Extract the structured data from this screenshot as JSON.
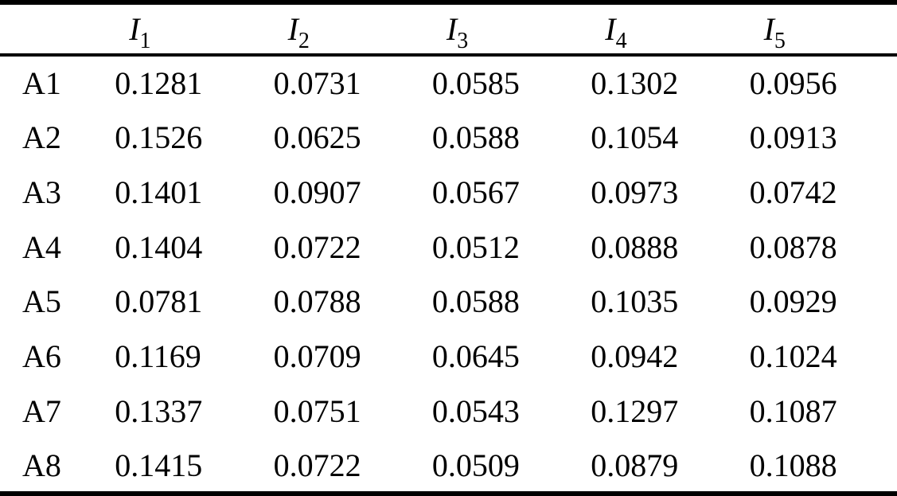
{
  "page": {
    "background_color": "#ffffff",
    "text_color": "#000000"
  },
  "chart_data": {
    "type": "table",
    "corner_header": "",
    "column_headers": [
      {
        "base": "I",
        "sub": "1"
      },
      {
        "base": "I",
        "sub": "2"
      },
      {
        "base": "I",
        "sub": "3"
      },
      {
        "base": "I",
        "sub": "4"
      },
      {
        "base": "I",
        "sub": "5"
      }
    ],
    "row_labels": [
      "A1",
      "A2",
      "A3",
      "A4",
      "A5",
      "A6",
      "A7",
      "A8"
    ],
    "rows": [
      [
        "0.1281",
        "0.0731",
        "0.0585",
        "0.1302",
        "0.0956"
      ],
      [
        "0.1526",
        "0.0625",
        "0.0588",
        "0.1054",
        "0.0913"
      ],
      [
        "0.1401",
        "0.0907",
        "0.0567",
        "0.0973",
        "0.0742"
      ],
      [
        "0.1404",
        "0.0722",
        "0.0512",
        "0.0888",
        "0.0878"
      ],
      [
        "0.0781",
        "0.0788",
        "0.0588",
        "0.1035",
        "0.0929"
      ],
      [
        "0.1169",
        "0.0709",
        "0.0645",
        "0.0942",
        "0.1024"
      ],
      [
        "0.1337",
        "0.0751",
        "0.0543",
        "0.1297",
        "0.1087"
      ],
      [
        "0.1415",
        "0.0722",
        "0.0509",
        "0.0879",
        "0.1088"
      ]
    ]
  }
}
